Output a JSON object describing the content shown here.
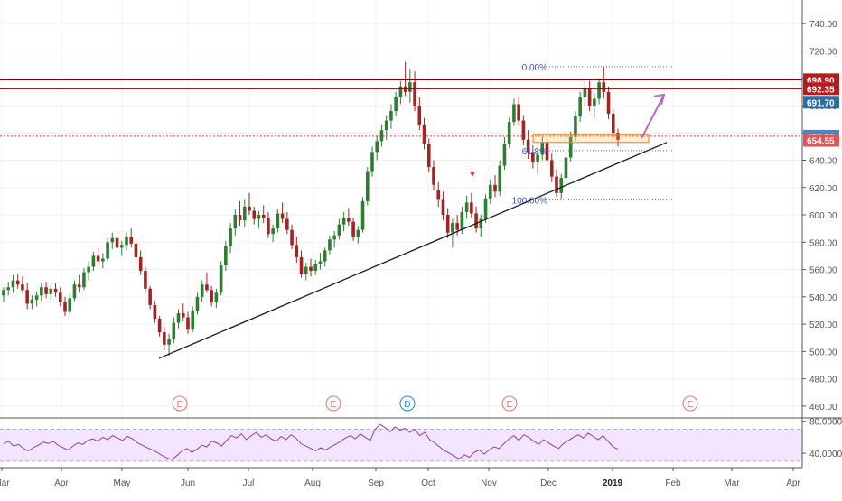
{
  "chart_data": {
    "type": "candlestick",
    "price_axis": {
      "ticks": [
        "460.00",
        "480.00",
        "500.00",
        "520.00",
        "540.00",
        "560.00",
        "580.00",
        "600.00",
        "620.00",
        "640.00",
        "660.00",
        "680.00",
        "700.00",
        "720.00",
        "740.00"
      ],
      "range": [
        452,
        752
      ]
    },
    "x_axis": {
      "labels": [
        "Mar",
        "Apr",
        "May",
        "Jun",
        "Jul",
        "Aug",
        "Sep",
        "Oct",
        "Nov",
        "Dec",
        "2019",
        "Feb",
        "Mar",
        "Apr"
      ]
    },
    "price_tags": [
      {
        "label": "698.90",
        "value": 698.9,
        "color": "#b71c1c"
      },
      {
        "label": "692.35",
        "value": 692.35,
        "color": "#b71c1c"
      },
      {
        "label": "691.70",
        "value": 691.7,
        "color": "#2e6da4"
      },
      {
        "label": "657.55",
        "value": 657.55,
        "color": "#4a86c5"
      },
      {
        "label": "654.55",
        "value": 654.55,
        "color": "#e05656"
      }
    ],
    "resistance_lines": [
      698.9,
      692.35
    ],
    "current_price": 657.55,
    "fibonacci": {
      "levels": [
        {
          "label": "0.00%",
          "value": 708.5
        },
        {
          "label": "61.8%",
          "value": 647
        },
        {
          "label": "100.00%",
          "value": 611
        }
      ]
    },
    "trendline": {
      "from_price": 495,
      "to_price": 653
    },
    "projection_arrow": {
      "from_price": 656,
      "to_price": 688
    },
    "events": [
      "E",
      "E",
      "D",
      "E",
      "E"
    ],
    "candles": [
      [
        541,
        547,
        536,
        545
      ],
      [
        545,
        551,
        541,
        547
      ],
      [
        547,
        556,
        543,
        552
      ],
      [
        552,
        557,
        546,
        549
      ],
      [
        549,
        555,
        543,
        545
      ],
      [
        545,
        550,
        531,
        535
      ],
      [
        535,
        541,
        531,
        538
      ],
      [
        538,
        544,
        533,
        541
      ],
      [
        541,
        550,
        537,
        547
      ],
      [
        547,
        551,
        539,
        542
      ],
      [
        542,
        549,
        538,
        546
      ],
      [
        546,
        550,
        540,
        543
      ],
      [
        543,
        547,
        533,
        536
      ],
      [
        536,
        540,
        526,
        529
      ],
      [
        529,
        542,
        527,
        539
      ],
      [
        539,
        552,
        537,
        549
      ],
      [
        549,
        556,
        543,
        547
      ],
      [
        547,
        561,
        545,
        558
      ],
      [
        558,
        566,
        552,
        562
      ],
      [
        562,
        573,
        559,
        570
      ],
      [
        570,
        576,
        563,
        566
      ],
      [
        566,
        572,
        561,
        568
      ],
      [
        568,
        583,
        566,
        580
      ],
      [
        580,
        587,
        575,
        583
      ],
      [
        583,
        585,
        573,
        576
      ],
      [
        576,
        581,
        570,
        578
      ],
      [
        578,
        587,
        574,
        584
      ],
      [
        584,
        590,
        576,
        579
      ],
      [
        579,
        582,
        566,
        569
      ],
      [
        569,
        574,
        556,
        559
      ],
      [
        559,
        562,
        543,
        546
      ],
      [
        546,
        548,
        531,
        534
      ],
      [
        534,
        537,
        521,
        524
      ],
      [
        524,
        526,
        511,
        514
      ],
      [
        514,
        518,
        501,
        505
      ],
      [
        505,
        513,
        497,
        509
      ],
      [
        509,
        525,
        506,
        521
      ],
      [
        521,
        531,
        517,
        528
      ],
      [
        528,
        535,
        522,
        525
      ],
      [
        525,
        529,
        513,
        516
      ],
      [
        516,
        533,
        514,
        530
      ],
      [
        530,
        543,
        527,
        540
      ],
      [
        540,
        552,
        536,
        549
      ],
      [
        549,
        558,
        543,
        545
      ],
      [
        545,
        548,
        533,
        536
      ],
      [
        536,
        546,
        532,
        543
      ],
      [
        543,
        566,
        541,
        563
      ],
      [
        563,
        581,
        559,
        577
      ],
      [
        577,
        594,
        572,
        590
      ],
      [
        590,
        604,
        585,
        600
      ],
      [
        600,
        610,
        592,
        596
      ],
      [
        596,
        611,
        591,
        606
      ],
      [
        606,
        616,
        600,
        603
      ],
      [
        603,
        606,
        593,
        597
      ],
      [
        597,
        603,
        590,
        600
      ],
      [
        600,
        607,
        594,
        598
      ],
      [
        598,
        602,
        583,
        586
      ],
      [
        586,
        593,
        580,
        590
      ],
      [
        590,
        604,
        587,
        601
      ],
      [
        601,
        609,
        594,
        597
      ],
      [
        597,
        602,
        586,
        589
      ],
      [
        589,
        593,
        575,
        578
      ],
      [
        578,
        584,
        565,
        569
      ],
      [
        569,
        574,
        554,
        557
      ],
      [
        557,
        565,
        552,
        562
      ],
      [
        562,
        568,
        555,
        559
      ],
      [
        559,
        567,
        556,
        564
      ],
      [
        564,
        572,
        560,
        566
      ],
      [
        566,
        576,
        562,
        574
      ],
      [
        574,
        585,
        571,
        582
      ],
      [
        582,
        588,
        576,
        585
      ],
      [
        585,
        597,
        582,
        593
      ],
      [
        593,
        602,
        588,
        598
      ],
      [
        598,
        605,
        592,
        595
      ],
      [
        595,
        598,
        581,
        584
      ],
      [
        584,
        592,
        579,
        589
      ],
      [
        589,
        613,
        587,
        610
      ],
      [
        610,
        635,
        607,
        632
      ],
      [
        632,
        650,
        628,
        646
      ],
      [
        646,
        658,
        640,
        654
      ],
      [
        654,
        666,
        650,
        662
      ],
      [
        662,
        673,
        655,
        669
      ],
      [
        669,
        681,
        663,
        676
      ],
      [
        676,
        690,
        672,
        686
      ],
      [
        686,
        698,
        681,
        694
      ],
      [
        694,
        712,
        687,
        690
      ],
      [
        690,
        707,
        682,
        697
      ],
      [
        697,
        705,
        676,
        680
      ],
      [
        680,
        686,
        662,
        666
      ],
      [
        666,
        671,
        648,
        652
      ],
      [
        652,
        656,
        631,
        635
      ],
      [
        635,
        640,
        618,
        622
      ],
      [
        618,
        624,
        606,
        611
      ],
      [
        611,
        617,
        596,
        600
      ],
      [
        600,
        605,
        583,
        587
      ],
      [
        587,
        597,
        576,
        594
      ],
      [
        594,
        600,
        585,
        589
      ],
      [
        589,
        606,
        586,
        602
      ],
      [
        602,
        614,
        597,
        609
      ],
      [
        609,
        616,
        598,
        601
      ],
      [
        601,
        606,
        587,
        590
      ],
      [
        590,
        600,
        584,
        597
      ],
      [
        597,
        615,
        594,
        612
      ],
      [
        612,
        626,
        608,
        622
      ],
      [
        622,
        629,
        613,
        617
      ],
      [
        617,
        640,
        614,
        636
      ],
      [
        636,
        657,
        633,
        652
      ],
      [
        652,
        671,
        649,
        668
      ],
      [
        668,
        685,
        665,
        681
      ],
      [
        681,
        686,
        665,
        669
      ],
      [
        669,
        673,
        651,
        655
      ],
      [
        655,
        662,
        641,
        646
      ],
      [
        646,
        651,
        634,
        639
      ],
      [
        639,
        648,
        630,
        644
      ],
      [
        644,
        657,
        640,
        653
      ],
      [
        653,
        658,
        636,
        640
      ],
      [
        640,
        645,
        624,
        628
      ],
      [
        628,
        633,
        613,
        616
      ],
      [
        616,
        630,
        612,
        627
      ],
      [
        627,
        645,
        623,
        642
      ],
      [
        642,
        661,
        639,
        657
      ],
      [
        657,
        676,
        654,
        672
      ],
      [
        672,
        690,
        668,
        686
      ],
      [
        686,
        698,
        680,
        693
      ],
      [
        693,
        698,
        676,
        680
      ],
      [
        680,
        689,
        671,
        685
      ],
      [
        685,
        700,
        681,
        697
      ],
      [
        697,
        708,
        685,
        690
      ],
      [
        690,
        694,
        670,
        674
      ],
      [
        674,
        677,
        656,
        660
      ],
      [
        660,
        663,
        650,
        655
      ]
    ],
    "rsi": {
      "ticks": [
        "40.0000",
        "80.0000"
      ],
      "range": [
        22,
        83
      ],
      "band": [
        30,
        70
      ],
      "values": [
        52,
        55,
        49,
        51,
        46,
        43,
        47,
        50,
        54,
        52,
        55,
        50,
        47,
        44,
        49,
        53,
        51,
        56,
        58,
        55,
        60,
        57,
        62,
        59,
        56,
        61,
        58,
        53,
        50,
        47,
        44,
        41,
        37,
        34,
        32,
        37,
        43,
        46,
        41,
        45,
        50,
        48,
        55,
        53,
        49,
        56,
        62,
        59,
        64,
        57,
        62,
        66,
        60,
        63,
        58,
        55,
        61,
        57,
        63,
        59,
        52,
        49,
        46,
        43,
        47,
        44,
        48,
        51,
        55,
        59,
        62,
        58,
        64,
        60,
        56,
        70,
        76,
        72,
        67,
        73,
        69,
        71,
        66,
        70,
        62,
        66,
        57,
        53,
        48,
        43,
        40,
        36,
        33,
        38,
        35,
        41,
        44,
        39,
        44,
        48,
        46,
        52,
        58,
        62,
        56,
        63,
        60,
        55,
        51,
        57,
        53,
        49,
        46,
        52,
        56,
        60,
        63,
        59,
        65,
        61,
        57,
        62,
        55,
        48,
        45
      ]
    }
  }
}
